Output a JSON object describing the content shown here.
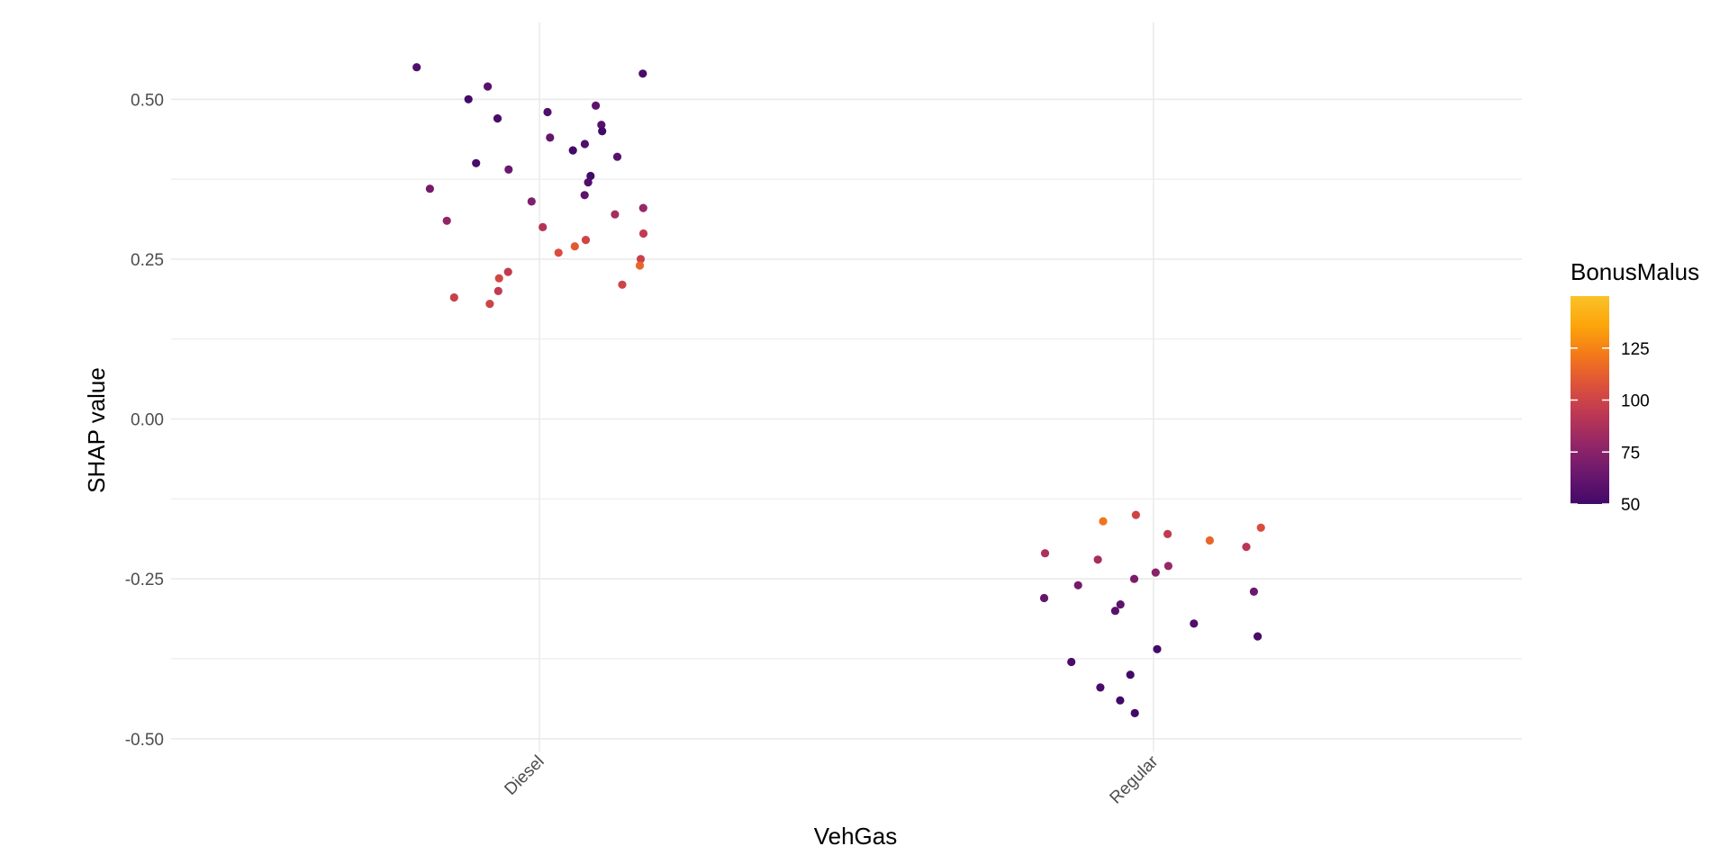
{
  "chart_data": {
    "type": "scatter",
    "title": "",
    "xlabel": "VehGas",
    "ylabel": "SHAP value",
    "categories": [
      "Diesel",
      "Regular"
    ],
    "ylim": [
      -0.52,
      0.62
    ],
    "y_ticks": [
      {
        "value": 0.5,
        "label": "0.50"
      },
      {
        "value": 0.25,
        "label": "0.25"
      },
      {
        "value": 0.0,
        "label": "0.00"
      },
      {
        "value": -0.25,
        "label": "-0.25"
      },
      {
        "value": -0.5,
        "label": "-0.50"
      }
    ],
    "grid": true,
    "color_scale": {
      "title": "BonusMalus",
      "min": 50,
      "max": 150,
      "ticks": [
        {
          "value": 125,
          "label": "125"
        },
        {
          "value": 100,
          "label": "100"
        },
        {
          "value": 75,
          "label": "75"
        },
        {
          "value": 50,
          "label": "50"
        }
      ],
      "palette": [
        "#420a68",
        "#6a176e",
        "#932667",
        "#bc3754",
        "#dd513a",
        "#f37819",
        "#fca50a",
        "#fac228"
      ],
      "legend_position": "right"
    },
    "series": [
      {
        "category": "Diesel",
        "jitter_width": 0.2,
        "points": [
          {
            "y": 0.55,
            "c": 55
          },
          {
            "y": 0.54,
            "c": 52
          },
          {
            "y": 0.52,
            "c": 58
          },
          {
            "y": 0.5,
            "c": 50
          },
          {
            "y": 0.49,
            "c": 60
          },
          {
            "y": 0.48,
            "c": 55
          },
          {
            "y": 0.47,
            "c": 52
          },
          {
            "y": 0.46,
            "c": 57
          },
          {
            "y": 0.45,
            "c": 50
          },
          {
            "y": 0.44,
            "c": 62
          },
          {
            "y": 0.43,
            "c": 55
          },
          {
            "y": 0.42,
            "c": 50
          },
          {
            "y": 0.41,
            "c": 58
          },
          {
            "y": 0.4,
            "c": 52
          },
          {
            "y": 0.39,
            "c": 65
          },
          {
            "y": 0.38,
            "c": 50
          },
          {
            "y": 0.37,
            "c": 55
          },
          {
            "y": 0.36,
            "c": 68
          },
          {
            "y": 0.35,
            "c": 60
          },
          {
            "y": 0.34,
            "c": 72
          },
          {
            "y": 0.33,
            "c": 80
          },
          {
            "y": 0.32,
            "c": 85
          },
          {
            "y": 0.31,
            "c": 78
          },
          {
            "y": 0.3,
            "c": 90
          },
          {
            "y": 0.29,
            "c": 95
          },
          {
            "y": 0.28,
            "c": 100
          },
          {
            "y": 0.27,
            "c": 110
          },
          {
            "y": 0.26,
            "c": 105
          },
          {
            "y": 0.25,
            "c": 98
          },
          {
            "y": 0.24,
            "c": 115
          },
          {
            "y": 0.23,
            "c": 95
          },
          {
            "y": 0.22,
            "c": 102
          },
          {
            "y": 0.21,
            "c": 100
          },
          {
            "y": 0.2,
            "c": 95
          },
          {
            "y": 0.19,
            "c": 98
          },
          {
            "y": 0.18,
            "c": 100
          }
        ]
      },
      {
        "category": "Regular",
        "jitter_width": 0.2,
        "points": [
          {
            "y": -0.15,
            "c": 100
          },
          {
            "y": -0.16,
            "c": 120
          },
          {
            "y": -0.17,
            "c": 105
          },
          {
            "y": -0.18,
            "c": 95
          },
          {
            "y": -0.19,
            "c": 115
          },
          {
            "y": -0.2,
            "c": 92
          },
          {
            "y": -0.21,
            "c": 88
          },
          {
            "y": -0.22,
            "c": 85
          },
          {
            "y": -0.23,
            "c": 80
          },
          {
            "y": -0.24,
            "c": 75
          },
          {
            "y": -0.25,
            "c": 70
          },
          {
            "y": -0.26,
            "c": 68
          },
          {
            "y": -0.27,
            "c": 65
          },
          {
            "y": -0.28,
            "c": 62
          },
          {
            "y": -0.29,
            "c": 60
          },
          {
            "y": -0.3,
            "c": 58
          },
          {
            "y": -0.32,
            "c": 55
          },
          {
            "y": -0.34,
            "c": 52
          },
          {
            "y": -0.36,
            "c": 50
          },
          {
            "y": -0.38,
            "c": 53
          },
          {
            "y": -0.4,
            "c": 50
          },
          {
            "y": -0.42,
            "c": 52
          },
          {
            "y": -0.44,
            "c": 50
          },
          {
            "y": -0.46,
            "c": 50
          }
        ]
      }
    ]
  }
}
